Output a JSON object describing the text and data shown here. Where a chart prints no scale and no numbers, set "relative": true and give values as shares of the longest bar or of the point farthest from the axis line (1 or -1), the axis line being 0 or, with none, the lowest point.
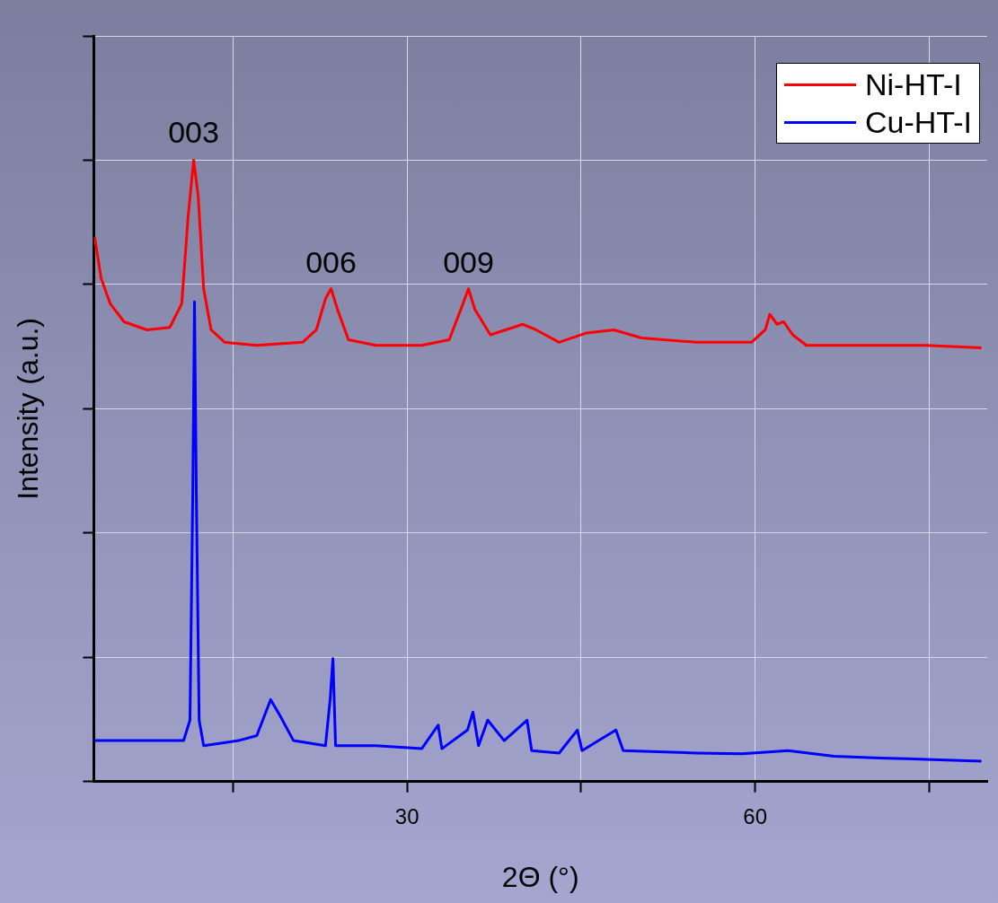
{
  "chart_data": {
    "type": "line",
    "relative": true,
    "xlabel": "2Θ (°)",
    "ylabel": "Intensity (a.u.)",
    "xlim": [
      3,
      80
    ],
    "xticks": [
      {
        "value": 15,
        "label": null
      },
      30,
      {
        "value": 45,
        "label": null
      },
      60,
      {
        "value": 75,
        "label": null
      }
    ],
    "grid": true,
    "legend": "top right",
    "marker": "none",
    "line_style": "solid",
    "annotations": [
      {
        "text": "003",
        "x": 11.6,
        "y": 1.0
      },
      {
        "text": "006",
        "x": 23.45,
        "y": 0.79
      },
      {
        "text": "009",
        "x": 35.29,
        "y": 0.79
      }
    ],
    "series": [
      {
        "name": "Ni-HT-I",
        "color": "#ff0000",
        "x": [
          3.08,
          3.63,
          4.42,
          5.61,
          7.58,
          9.55,
          10.58,
          11.13,
          11.61,
          12.0,
          12.47,
          13.11,
          14.29,
          17.05,
          21.0,
          22.18,
          22.97,
          23.45,
          24.0,
          24.95,
          27.32,
          31.26,
          33.63,
          34.82,
          35.29,
          35.84,
          37.18,
          39.16,
          39.95,
          41.13,
          43.1,
          45.47,
          47.83,
          50.21,
          54.95,
          59.68,
          60.87,
          61.26,
          61.89,
          62.45,
          63.24,
          64.42,
          70.74,
          74.68,
          79.5
        ],
        "values": [
          0.876,
          0.81,
          0.769,
          0.74,
          0.727,
          0.731,
          0.769,
          0.909,
          1.0,
          0.942,
          0.793,
          0.727,
          0.707,
          0.702,
          0.707,
          0.727,
          0.777,
          0.793,
          0.76,
          0.711,
          0.702,
          0.702,
          0.711,
          0.769,
          0.793,
          0.76,
          0.719,
          0.731,
          0.736,
          0.727,
          0.707,
          0.722,
          0.727,
          0.714,
          0.707,
          0.707,
          0.727,
          0.752,
          0.736,
          0.74,
          0.719,
          0.702,
          0.702,
          0.702,
          0.698
        ]
      },
      {
        "name": "Cu-HT-I",
        "color": "#0000ff",
        "x": [
          3.08,
          7.58,
          10.74,
          11.29,
          11.53,
          11.68,
          11.84,
          12.08,
          12.47,
          15.47,
          17.05,
          18.24,
          19.03,
          20.21,
          22.97,
          23.37,
          23.61,
          23.84,
          27.32,
          31.26,
          32.68,
          33.0,
          35.21,
          35.68,
          36.16,
          36.95,
          38.37,
          40.34,
          40.74,
          43.1,
          44.68,
          45.08,
          48.0,
          48.63,
          54.95,
          58.89,
          62.84,
          66.79,
          70.74,
          74.68,
          79.5
        ],
        "values": [
          0.066,
          0.066,
          0.066,
          0.099,
          0.463,
          0.772,
          0.463,
          0.099,
          0.058,
          0.066,
          0.074,
          0.132,
          0.107,
          0.066,
          0.058,
          0.132,
          0.198,
          0.058,
          0.058,
          0.053,
          0.091,
          0.053,
          0.083,
          0.112,
          0.058,
          0.099,
          0.066,
          0.099,
          0.05,
          0.046,
          0.083,
          0.05,
          0.083,
          0.05,
          0.046,
          0.045,
          0.05,
          0.041,
          0.038,
          0.036,
          0.033
        ]
      }
    ]
  }
}
